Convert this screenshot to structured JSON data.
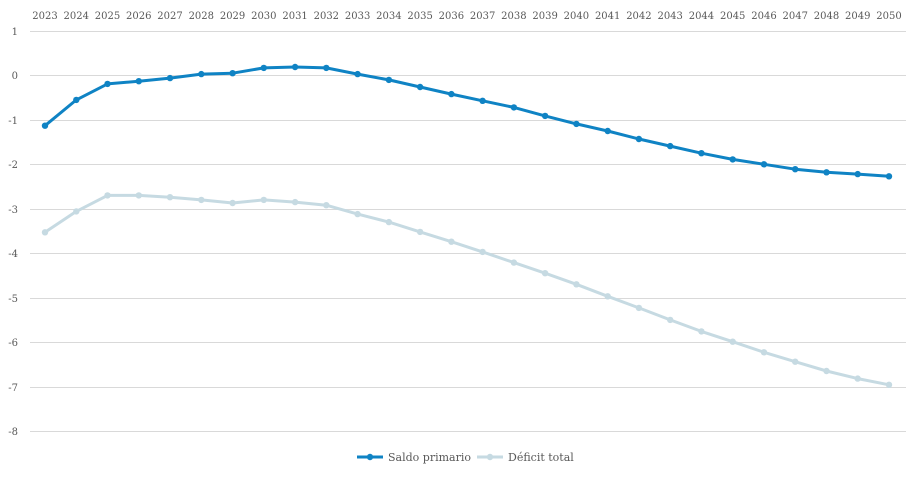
{
  "chart_data": {
    "type": "line",
    "title": "",
    "xlabel": "",
    "ylabel": "",
    "x": [
      "2023",
      "2024",
      "2025",
      "2026",
      "2027",
      "2028",
      "2029",
      "2030",
      "2031",
      "2032",
      "2033",
      "2034",
      "2035",
      "2036",
      "2037",
      "2038",
      "2039",
      "2040",
      "2041",
      "2042",
      "2043",
      "2044",
      "2045",
      "2046",
      "2047",
      "2048",
      "2049",
      "2050"
    ],
    "x_axis_position": "top",
    "ylim": [
      -8,
      1
    ],
    "yticks": [
      "1",
      "0",
      "-1",
      "-2",
      "-3",
      "-4",
      "-5",
      "-6",
      "-7",
      "-8"
    ],
    "grid": true,
    "legend_position": "bottom-center",
    "series": [
      {
        "name": "Saldo primario",
        "color": "#0f83c4",
        "values": [
          -1.13,
          -0.55,
          -0.19,
          -0.13,
          -0.06,
          0.03,
          0.05,
          0.17,
          0.19,
          0.17,
          0.03,
          -0.1,
          -0.26,
          -0.42,
          -0.57,
          -0.72,
          -0.91,
          -1.09,
          -1.25,
          -1.43,
          -1.59,
          -1.75,
          -1.89,
          -2.0,
          -2.11,
          -2.18,
          -2.22,
          -2.27
        ]
      },
      {
        "name": "Déficit total",
        "color": "#c6dae2",
        "values": [
          -3.53,
          -3.06,
          -2.7,
          -2.7,
          -2.74,
          -2.8,
          -2.87,
          -2.8,
          -2.85,
          -2.92,
          -3.12,
          -3.3,
          -3.52,
          -3.74,
          -3.97,
          -4.21,
          -4.45,
          -4.7,
          -4.97,
          -5.23,
          -5.5,
          -5.76,
          -5.99,
          -6.23,
          -6.44,
          -6.65,
          -6.82,
          -6.96
        ]
      }
    ]
  }
}
